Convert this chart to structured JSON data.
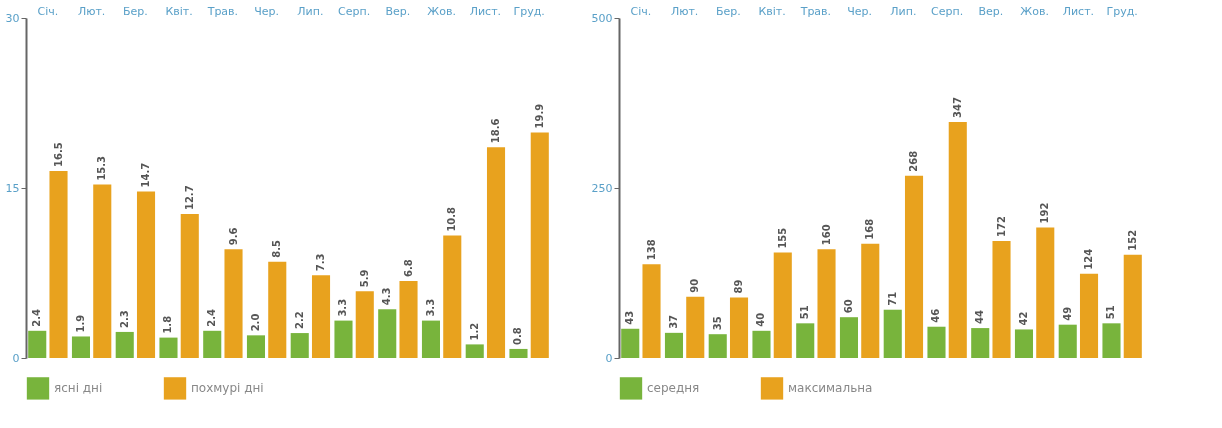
{
  "chart_data": [
    {
      "type": "bar",
      "categories": [
        "Січ.",
        "Лют.",
        "Бер.",
        "Квіт.",
        "Трав.",
        "Чер.",
        "Лип.",
        "Серп.",
        "Вер.",
        "Жов.",
        "Лист.",
        "Груд."
      ],
      "series": [
        {
          "name": "ясні дні",
          "color": "#78b43c",
          "values": [
            2.4,
            1.9,
            2.3,
            1.8,
            2.4,
            2.0,
            2.2,
            3.3,
            4.3,
            3.3,
            1.2,
            0.8
          ],
          "value_labels": [
            "2.4",
            "1.9",
            "2.3",
            "1.8",
            "2.4",
            "2.0",
            "2.2",
            "3.3",
            "4.3",
            "3.3",
            "1.2",
            "0.8"
          ]
        },
        {
          "name": "похмурі дні",
          "color": "#e8a21e",
          "values": [
            16.5,
            15.3,
            14.7,
            12.7,
            9.6,
            8.5,
            7.3,
            5.9,
            6.8,
            10.8,
            18.6,
            19.9
          ],
          "value_labels": [
            "16.5",
            "15.3",
            "14.7",
            "12.7",
            "9.6",
            "8.5",
            "7.3",
            "5.9",
            "6.8",
            "10.8",
            "18.6",
            "19.9"
          ]
        }
      ],
      "ylim": [
        0,
        30
      ],
      "yticks": [
        0,
        15,
        30
      ],
      "legend": "bottom left"
    },
    {
      "type": "bar",
      "categories": [
        "Січ.",
        "Лют.",
        "Бер.",
        "Квіт.",
        "Трав.",
        "Чер.",
        "Лип.",
        "Серп.",
        "Вер.",
        "Жов.",
        "Лист.",
        "Груд."
      ],
      "series": [
        {
          "name": "середня",
          "color": "#78b43c",
          "values": [
            43,
            37,
            35,
            40,
            51,
            60,
            71,
            46,
            44,
            42,
            49,
            51
          ]
        },
        {
          "name": "максимальна",
          "color": "#e8a21e",
          "values": [
            138,
            90,
            89,
            155,
            160,
            168,
            268,
            347,
            172,
            192,
            124,
            152
          ]
        }
      ],
      "ylim": [
        0,
        500
      ],
      "yticks": [
        0,
        250,
        500
      ],
      "data_labels": true,
      "legend": "bottom left"
    }
  ]
}
